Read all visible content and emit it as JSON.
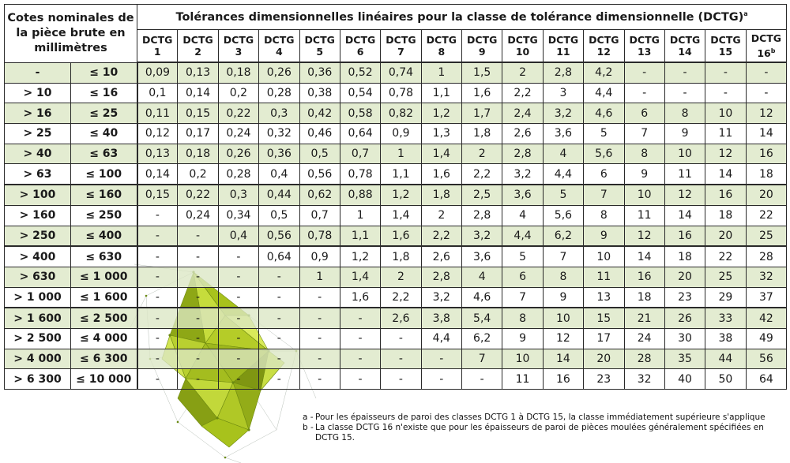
{
  "header": {
    "corner": "Cotes nominales de la pièce brute en millimètres",
    "title": "Tolérances dimensionnelles linéaires pour la classe de tolérance dimensionnelle (DCTG)",
    "title_sup": "a",
    "columns": [
      "DCTG 1",
      "DCTG 2",
      "DCTG 3",
      "DCTG 4",
      "DCTG 5",
      "DCTG 6",
      "DCTG 7",
      "DCTG 8",
      "DCTG 9",
      "DCTG 10",
      "DCTG 11",
      "DCTG 12",
      "DCTG 13",
      "DCTG 14",
      "DCTG 15",
      "DCTG 16"
    ],
    "last_column_sup": "b"
  },
  "rows": [
    {
      "lo": "-",
      "hi": "≤ 10",
      "v": [
        "0,09",
        "0,13",
        "0,18",
        "0,26",
        "0,36",
        "0,52",
        "0,74",
        "1",
        "1,5",
        "2",
        "2,8",
        "4,2",
        "-",
        "-",
        "-",
        "-"
      ]
    },
    {
      "lo": "> 10",
      "hi": "≤ 16",
      "v": [
        "0,1",
        "0,14",
        "0,2",
        "0,28",
        "0,38",
        "0,54",
        "0,78",
        "1,1",
        "1,6",
        "2,2",
        "3",
        "4,4",
        "-",
        "-",
        "-",
        "-"
      ]
    },
    {
      "lo": "> 16",
      "hi": "≤ 25",
      "v": [
        "0,11",
        "0,15",
        "0,22",
        "0,3",
        "0,42",
        "0,58",
        "0,82",
        "1,2",
        "1,7",
        "2,4",
        "3,2",
        "4,6",
        "6",
        "8",
        "10",
        "12"
      ]
    },
    {
      "lo": "> 25",
      "hi": "≤ 40",
      "v": [
        "0,12",
        "0,17",
        "0,24",
        "0,32",
        "0,46",
        "0,64",
        "0,9",
        "1,3",
        "1,8",
        "2,6",
        "3,6",
        "5",
        "7",
        "9",
        "11",
        "14"
      ]
    },
    {
      "lo": "> 40",
      "hi": "≤ 63",
      "v": [
        "0,13",
        "0,18",
        "0,26",
        "0,36",
        "0,5",
        "0,7",
        "1",
        "1,4",
        "2",
        "2,8",
        "4",
        "5,6",
        "8",
        "10",
        "12",
        "16"
      ]
    },
    {
      "lo": "> 63",
      "hi": "≤ 100",
      "v": [
        "0,14",
        "0,2",
        "0,28",
        "0,4",
        "0,56",
        "0,78",
        "1,1",
        "1,6",
        "2,2",
        "3,2",
        "4,4",
        "6",
        "9",
        "11",
        "14",
        "18"
      ]
    },
    {
      "lo": "> 100",
      "hi": "≤ 160",
      "v": [
        "0,15",
        "0,22",
        "0,3",
        "0,44",
        "0,62",
        "0,88",
        "1,2",
        "1,8",
        "2,5",
        "3,6",
        "5",
        "7",
        "10",
        "12",
        "16",
        "20"
      ]
    },
    {
      "lo": "> 160",
      "hi": "≤ 250",
      "v": [
        "-",
        "0,24",
        "0,34",
        "0,5",
        "0,7",
        "1",
        "1,4",
        "2",
        "2,8",
        "4",
        "5,6",
        "8",
        "11",
        "14",
        "18",
        "22"
      ]
    },
    {
      "lo": "> 250",
      "hi": "≤ 400",
      "v": [
        "-",
        "-",
        "0,4",
        "0,56",
        "0,78",
        "1,1",
        "1,6",
        "2,2",
        "3,2",
        "4,4",
        "6,2",
        "9",
        "12",
        "16",
        "20",
        "25"
      ]
    },
    {
      "lo": "> 400",
      "hi": "≤ 630",
      "v": [
        "-",
        "-",
        "-",
        "0,64",
        "0,9",
        "1,2",
        "1,8",
        "2,6",
        "3,6",
        "5",
        "7",
        "10",
        "14",
        "18",
        "22",
        "28"
      ]
    },
    {
      "lo": "> 630",
      "hi": "≤ 1 000",
      "v": [
        "-",
        "-",
        "-",
        "-",
        "1",
        "1,4",
        "2",
        "2,8",
        "4",
        "6",
        "8",
        "11",
        "16",
        "20",
        "25",
        "32"
      ]
    },
    {
      "lo": "> 1 000",
      "hi": "≤ 1 600",
      "v": [
        "-",
        "-",
        "-",
        "-",
        "-",
        "1,6",
        "2,2",
        "3,2",
        "4,6",
        "7",
        "9",
        "13",
        "18",
        "23",
        "29",
        "37"
      ]
    },
    {
      "lo": "> 1 600",
      "hi": "≤ 2 500",
      "v": [
        "-",
        "-",
        "-",
        "-",
        "-",
        "-",
        "2,6",
        "3,8",
        "5,4",
        "8",
        "10",
        "15",
        "21",
        "26",
        "33",
        "42"
      ]
    },
    {
      "lo": "> 2 500",
      "hi": "≤ 4 000",
      "v": [
        "-",
        "-",
        "-",
        "-",
        "-",
        "-",
        "-",
        "4,4",
        "6,2",
        "9",
        "12",
        "17",
        "24",
        "30",
        "38",
        "49"
      ]
    },
    {
      "lo": "> 4 000",
      "hi": "≤ 6 300",
      "v": [
        "-",
        "-",
        "-",
        "-",
        "-",
        "-",
        "-",
        "-",
        "7",
        "10",
        "14",
        "20",
        "28",
        "35",
        "44",
        "56"
      ]
    },
    {
      "lo": "> 6 300",
      "hi": "≤ 10 000",
      "v": [
        "-",
        "-",
        "-",
        "-",
        "-",
        "-",
        "-",
        "-",
        "-",
        "11",
        "16",
        "23",
        "32",
        "40",
        "50",
        "64"
      ]
    }
  ],
  "notes": [
    {
      "key": "a -",
      "text": "Pour les épaisseurs de paroi des classes DCTG 1 à DCTG 15, la classe immédiatement supérieure s'applique"
    },
    {
      "key": "b -",
      "text": "La classe DCTG 16 n'existe que pour les épaisseurs de paroi de pièces moulées généralement spécifiées en DCTG 15."
    }
  ],
  "colors": {
    "row_green": "#dbe7c4",
    "decor_green": "#a8c21c"
  },
  "decoration": "low-poly-green-crystal"
}
